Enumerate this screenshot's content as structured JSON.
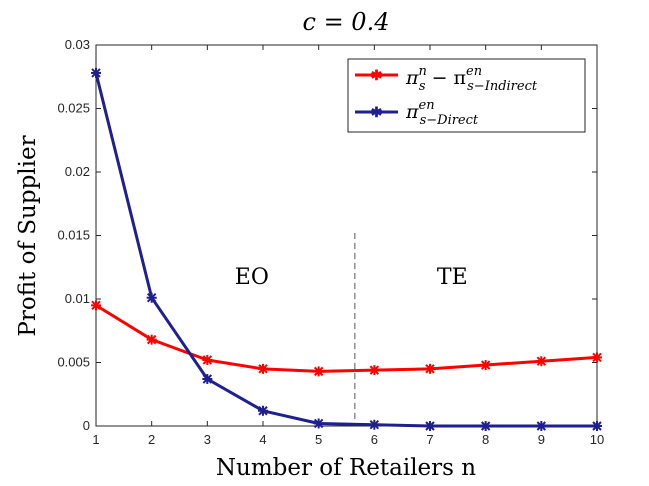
{
  "chart_data": {
    "type": "line",
    "title": "c = 0.4",
    "xlabel": "Number of Retailers n",
    "ylabel": "Profit of Supplier",
    "x": [
      1,
      2,
      3,
      4,
      5,
      6,
      7,
      8,
      9,
      10
    ],
    "xlim": [
      1,
      10
    ],
    "ylim": [
      0,
      0.03
    ],
    "xticks": [
      "1",
      "2",
      "3",
      "4",
      "5",
      "6",
      "7",
      "8",
      "9",
      "10"
    ],
    "yticks": [
      "0",
      "0.005",
      "0.01",
      "0.015",
      "0.02",
      "0.025",
      "0.03"
    ],
    "grid": false,
    "legend_position": "top-right",
    "series": [
      {
        "name": "π_s^n − π_{s−Indirect}^{en}",
        "color": "#ff0000",
        "values": [
          0.0095,
          0.0068,
          0.0052,
          0.0045,
          0.0043,
          0.0044,
          0.0045,
          0.0048,
          0.0051,
          0.0054
        ]
      },
      {
        "name": "π_{s−Direct}^{en}",
        "color": "#1f1f8f",
        "values": [
          0.0278,
          0.0101,
          0.0037,
          0.0012,
          0.0002,
          0.0001,
          0.0,
          0.0,
          0.0,
          0.0
        ]
      }
    ],
    "divider_x": 5.65,
    "annotations": [
      {
        "text": "EO",
        "x": 3.8,
        "y": 0.0112
      },
      {
        "text": "TE",
        "x": 7.4,
        "y": 0.0112
      }
    ]
  }
}
